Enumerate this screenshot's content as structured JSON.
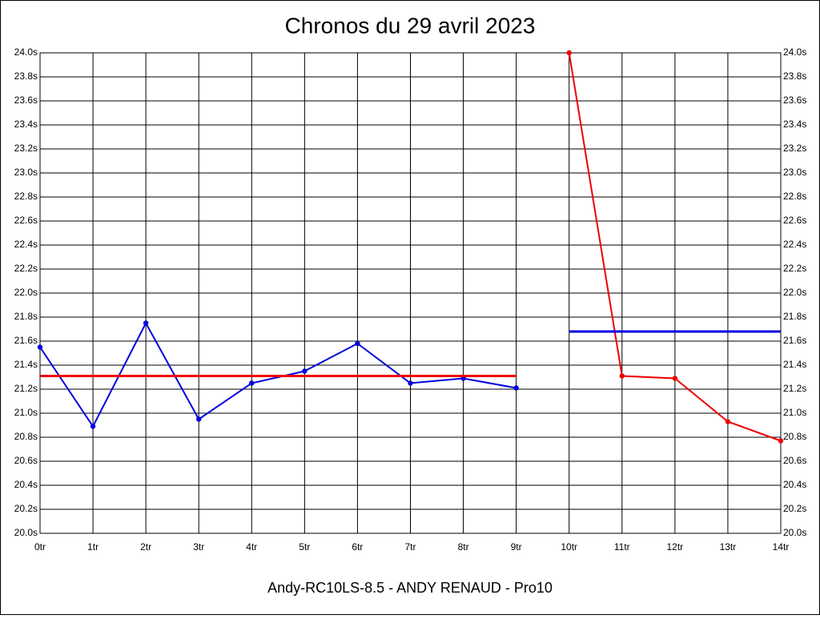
{
  "chart_data": {
    "type": "line",
    "title": "Chronos du 29 avril 2023",
    "xlabel": "Andy-RC10LS-8.5 - ANDY RENAUD - Pro10",
    "categories": [
      "0tr",
      "1tr",
      "2tr",
      "3tr",
      "4tr",
      "5tr",
      "6tr",
      "7tr",
      "8tr",
      "9tr",
      "10tr",
      "11tr",
      "12tr",
      "13tr",
      "14tr"
    ],
    "series": [
      {
        "color": "#0000dd",
        "marker": true,
        "values": [
          21.55,
          20.89,
          21.75,
          20.95,
          21.25,
          21.35,
          21.58,
          21.25,
          21.29,
          21.21,
          null,
          null,
          null,
          null,
          null
        ]
      },
      {
        "color": "#ee0000",
        "marker": true,
        "values": [
          null,
          null,
          null,
          null,
          null,
          null,
          null,
          null,
          null,
          null,
          24.0,
          21.31,
          21.29,
          20.93,
          20.77
        ]
      },
      {
        "color": "#ee0000",
        "marker": false,
        "values": [
          21.31,
          21.31,
          21.31,
          21.31,
          21.31,
          21.31,
          21.31,
          21.31,
          21.31,
          21.31,
          null,
          null,
          null,
          null,
          null
        ]
      },
      {
        "color": "#0000dd",
        "marker": false,
        "values": [
          null,
          null,
          null,
          null,
          null,
          null,
          null,
          null,
          null,
          null,
          21.68,
          21.68,
          21.68,
          21.68,
          21.68
        ]
      }
    ],
    "ylim": [
      20.0,
      24.0
    ],
    "yticks": [
      {
        "value": 20.0,
        "label": "20.0s"
      },
      {
        "value": 20.2,
        "label": "20.2s"
      },
      {
        "value": 20.4,
        "label": "20.4s"
      },
      {
        "value": 20.6,
        "label": "20.6s"
      },
      {
        "value": 20.8,
        "label": "20.8s"
      },
      {
        "value": 21.0,
        "label": "21.0s"
      },
      {
        "value": 21.2,
        "label": "21.2s"
      },
      {
        "value": 21.4,
        "label": "21.4s"
      },
      {
        "value": 21.6,
        "label": "21.6s"
      },
      {
        "value": 21.8,
        "label": "21.8s"
      },
      {
        "value": 22.0,
        "label": "22.0s"
      },
      {
        "value": 22.2,
        "label": "22.2s"
      },
      {
        "value": 22.4,
        "label": "22.4s"
      },
      {
        "value": 22.6,
        "label": "22.6s"
      },
      {
        "value": 22.8,
        "label": "22.8s"
      },
      {
        "value": 23.0,
        "label": "23.0s"
      },
      {
        "value": 23.2,
        "label": "23.2s"
      },
      {
        "value": 23.4,
        "label": "23.4s"
      },
      {
        "value": 23.6,
        "label": "23.6s"
      },
      {
        "value": 23.8,
        "label": "23.8s"
      },
      {
        "value": 24.0,
        "label": "24.0s"
      }
    ],
    "grid": true,
    "right_axis": true
  }
}
